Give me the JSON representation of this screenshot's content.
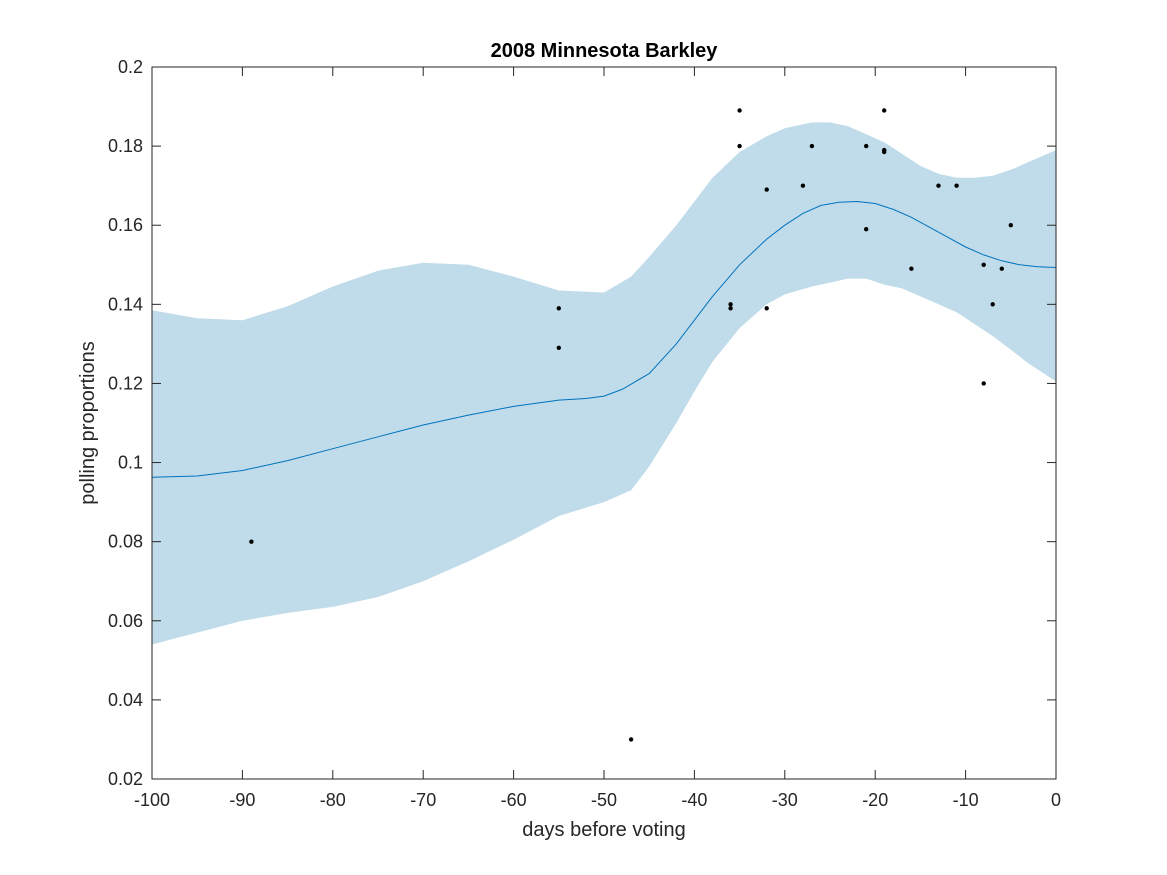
{
  "chart_data": {
    "type": "line",
    "title": "2008 Minnesota Barkley",
    "xlabel": "days before voting",
    "ylabel": "polling proportions",
    "xlim": [
      -100,
      0
    ],
    "ylim": [
      0.02,
      0.2
    ],
    "xticks": [
      -100,
      -90,
      -80,
      -70,
      -60,
      -50,
      -40,
      -30,
      -20,
      -10,
      0
    ],
    "yticks": [
      0.02,
      0.04,
      0.06,
      0.08,
      0.1,
      0.12,
      0.14,
      0.16,
      0.18,
      0.2
    ],
    "xtick_labels": [
      "-100",
      "-90",
      "-80",
      "-70",
      "-60",
      "-50",
      "-40",
      "-30",
      "-20",
      "-10",
      "0"
    ],
    "ytick_labels": [
      "0.02",
      "0.04",
      "0.06",
      "0.08",
      "0.1",
      "0.12",
      "0.14",
      "0.16",
      "0.18",
      "0.2"
    ],
    "grid": false,
    "colors": {
      "band": "#c0dcea",
      "line": "#0072bd",
      "points": "#000000",
      "axis": "#262626"
    },
    "series": [
      {
        "kind": "band",
        "x": [
          -100,
          -95,
          -90,
          -85,
          -80,
          -75,
          -70,
          -65,
          -60,
          -55,
          -50,
          -47,
          -45,
          -42,
          -40,
          -38,
          -35,
          -32,
          -30,
          -27,
          -25,
          -23,
          -21,
          -19,
          -17,
          -15,
          -13,
          -11,
          -9,
          -7,
          -5,
          -3,
          -1,
          0
        ],
        "upper": [
          0.1385,
          0.1365,
          0.136,
          0.1395,
          0.1445,
          0.1485,
          0.1505,
          0.15,
          0.147,
          0.1435,
          0.143,
          0.147,
          0.152,
          0.16,
          0.166,
          0.172,
          0.1785,
          0.1825,
          0.1845,
          0.186,
          0.186,
          0.185,
          0.183,
          0.181,
          0.178,
          0.175,
          0.173,
          0.172,
          0.172,
          0.1725,
          0.174,
          0.176,
          0.178,
          0.179
        ],
        "lower": [
          0.054,
          0.057,
          0.06,
          0.062,
          0.0635,
          0.066,
          0.07,
          0.075,
          0.0805,
          0.0865,
          0.09,
          0.093,
          0.099,
          0.11,
          0.118,
          0.1255,
          0.134,
          0.14,
          0.1425,
          0.1445,
          0.1455,
          0.1465,
          0.1465,
          0.145,
          0.144,
          0.142,
          0.14,
          0.138,
          0.135,
          0.132,
          0.1285,
          0.125,
          0.122,
          0.1205
        ]
      },
      {
        "kind": "line",
        "x": [
          -100,
          -95,
          -90,
          -85,
          -80,
          -75,
          -70,
          -65,
          -60,
          -55,
          -52,
          -50,
          -48,
          -45,
          -42,
          -40,
          -38,
          -35,
          -32,
          -30,
          -28,
          -26,
          -24,
          -22,
          -20,
          -18,
          -16,
          -14,
          -12,
          -10,
          -8,
          -6,
          -4,
          -2,
          0
        ],
        "y": [
          0.0963,
          0.0966,
          0.098,
          0.1005,
          0.1035,
          0.1065,
          0.1095,
          0.112,
          0.1142,
          0.1158,
          0.1162,
          0.1168,
          0.1185,
          0.1225,
          0.13,
          0.136,
          0.142,
          0.15,
          0.1565,
          0.16,
          0.163,
          0.165,
          0.1658,
          0.166,
          0.1655,
          0.164,
          0.162,
          0.1595,
          0.157,
          0.1545,
          0.1525,
          0.151,
          0.15,
          0.1495,
          0.1493
        ]
      },
      {
        "kind": "scatter",
        "x": [
          -89,
          -55,
          -55,
          -47,
          -36,
          -36,
          -35,
          -35,
          -32,
          -32,
          -28,
          -27,
          -21,
          -21,
          -19,
          -19,
          -19,
          -16,
          -13,
          -11,
          -8,
          -8,
          -7,
          -6,
          -5
        ],
        "y": [
          0.08,
          0.139,
          0.129,
          0.03,
          0.14,
          0.139,
          0.189,
          0.18,
          0.169,
          0.139,
          0.17,
          0.18,
          0.18,
          0.159,
          0.189,
          0.179,
          0.1785,
          0.149,
          0.17,
          0.17,
          0.15,
          0.12,
          0.14,
          0.149,
          0.16
        ]
      }
    ]
  }
}
